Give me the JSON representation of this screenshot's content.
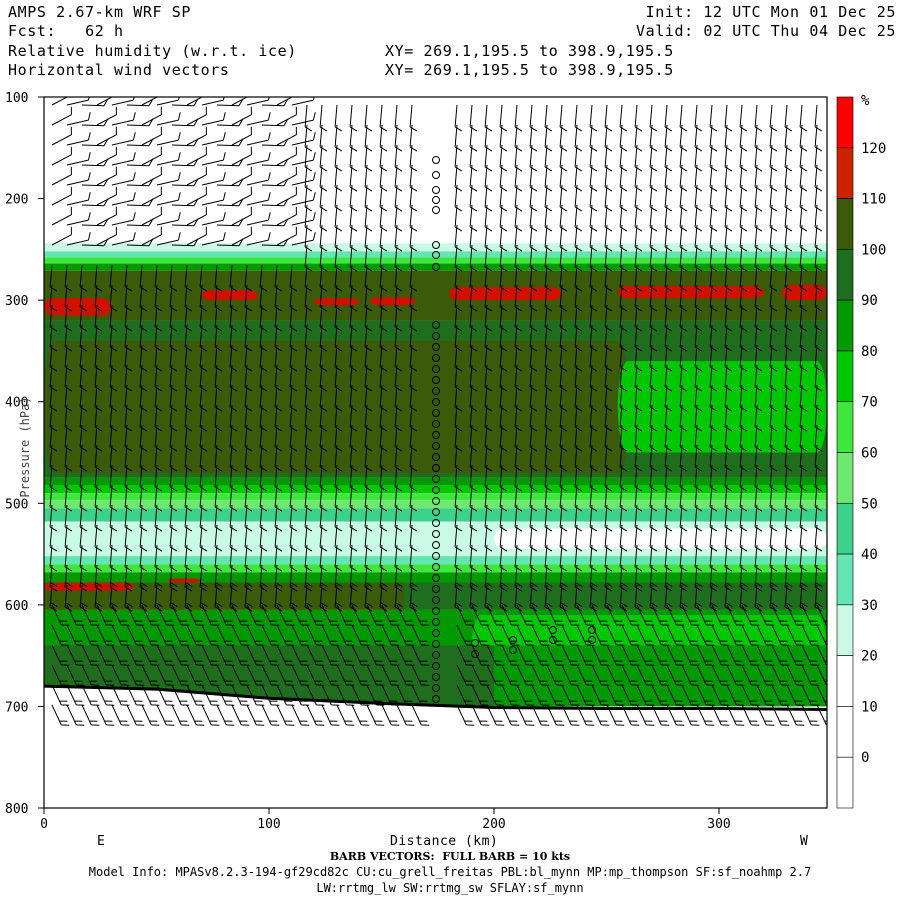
{
  "header": {
    "model": "AMPS 2.67-km WRF SP",
    "fcst_label": "Fcst:",
    "fcst_value": "62 h",
    "var1": "Relative humidity (w.r.t. ice)",
    "var2": "Horizontal wind vectors",
    "init": "Init: 12 UTC Mon 01 Dec 25",
    "valid": "Valid: 02 UTC Thu 04 Dec 25",
    "xy1": "XY= 269.1,195.5 to 398.9,195.5",
    "xy2": "XY= 269.1,195.5 to 398.9,195.5"
  },
  "axes": {
    "x_title": "Distance (km)",
    "x_left": "E",
    "x_right": "W",
    "x_ticks": [
      "0",
      "100",
      "200",
      "300"
    ],
    "y_title": "Pressure (hPa)",
    "y_ticks": [
      "100",
      "200",
      "300",
      "400",
      "500",
      "600",
      "700",
      "800"
    ]
  },
  "colorbar": {
    "unit": "%",
    "labels": [
      "120",
      "110",
      "100",
      "90",
      "80",
      "70",
      "60",
      "50",
      "40",
      "30",
      "20",
      "10",
      "0"
    ],
    "colors": [
      "#ff0000",
      "#cc2200",
      "#3b5a0a",
      "#1e6e1e",
      "#009a00",
      "#00c800",
      "#3ee63e",
      "#6ee86e",
      "#3cd28c",
      "#64e6b4",
      "#c8fae6",
      "#ffffff",
      "#ffffff",
      "#ffffff"
    ]
  },
  "footer": {
    "line1": "BARB VECTORS:  FULL BARB = 10 kts",
    "line2": "Model Info: MPASv8.2.3-194-gf29cd82c CU:cu_grell_freitas PBL:bl_mynn MP:mp_thompson SF:sf_noahmp 2.7",
    "line3": "LW:rrtmg_lw SW:rrtmg_sw SFLAY:sf_mynn"
  },
  "chart_data": {
    "type": "heatmap",
    "title": "Relative humidity (w.r.t. ice)",
    "xlabel": "Distance (km)",
    "ylabel": "Pressure (hPa)",
    "xlim": [
      0,
      348
    ],
    "ylim": [
      100,
      800
    ],
    "y_scale": "linear, inverted",
    "colorbar_unit": "%",
    "terrain_surface_hpa": [
      [
        0,
        680
      ],
      [
        50,
        683
      ],
      [
        100,
        692
      ],
      [
        150,
        697
      ],
      [
        200,
        701
      ],
      [
        250,
        702
      ],
      [
        300,
        702
      ],
      [
        348,
        703
      ]
    ],
    "rh_layers": [
      {
        "p_top": 100,
        "p_bottom": 240,
        "rh_range": "<30",
        "note": "dry upper troposphere"
      },
      {
        "p_top": 245,
        "p_bottom": 270,
        "rh_range": "30-70"
      },
      {
        "p_top": 270,
        "p_bottom": 320,
        "rh_range": "100-110, patches >110"
      },
      {
        "p_top": 320,
        "p_bottom": 470,
        "rh_range": "90-100"
      },
      {
        "p_top": 470,
        "p_bottom": 510,
        "rh_range": "50-80"
      },
      {
        "p_top": 510,
        "p_bottom": 560,
        "rh_range": "30-50"
      },
      {
        "p_top": 560,
        "p_bottom": 600,
        "rh_range": "50-90, patches >110"
      },
      {
        "p_top": 600,
        "p_bottom": 700,
        "rh_range": "80-100"
      }
    ],
    "wind_barbs": "horizontal wind vectors shown as barbs, full barb = 10 kts"
  }
}
